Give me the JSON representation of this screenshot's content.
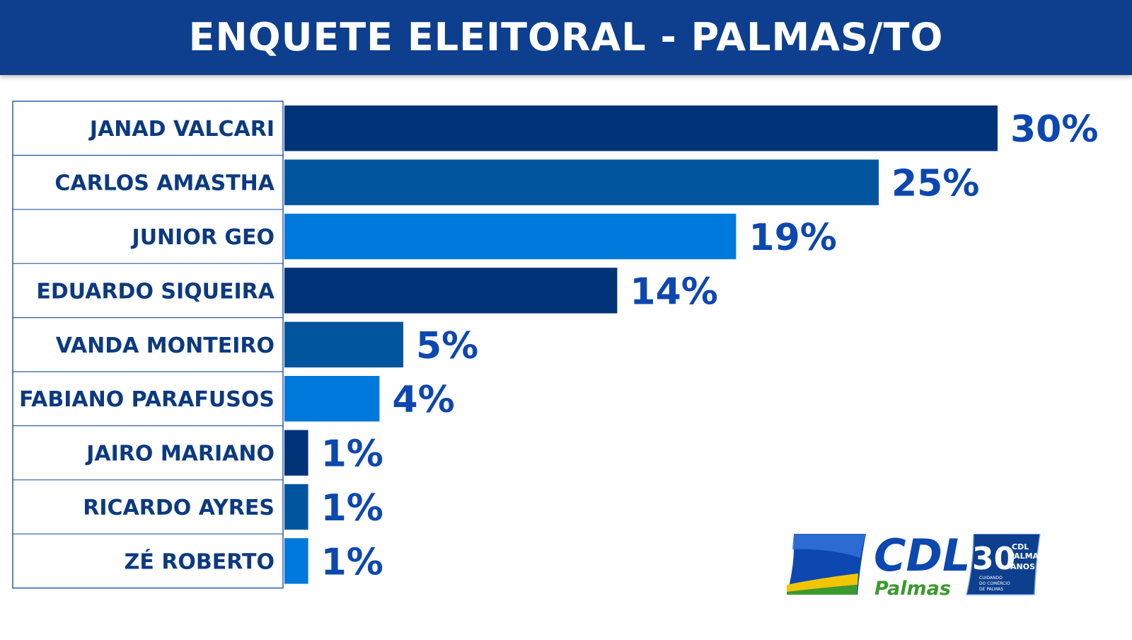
{
  "header": {
    "title": "ENQUETE ELEITORAL - PALMAS/TO"
  },
  "chart_data": {
    "type": "bar",
    "orientation": "horizontal",
    "title": "ENQUETE ELEITORAL - PALMAS/TO",
    "categories": [
      "JANAD VALCARI",
      "CARLOS AMASTHA",
      "JUNIOR GEO",
      "EDUARDO SIQUEIRA",
      "VANDA MONTEIRO",
      "FABIANO PARAFUSOS",
      "JAIRO MARIANO",
      "RICARDO AYRES",
      "ZÉ ROBERTO"
    ],
    "values": [
      30,
      25,
      19,
      14,
      5,
      4,
      1,
      1,
      1
    ],
    "value_labels": [
      "30%",
      "25%",
      "19%",
      "14%",
      "5%",
      "4%",
      "1%",
      "1%",
      "1%"
    ],
    "bar_colors": [
      "#003378",
      "#00559e",
      "#0079dd"
    ],
    "xlabel": "",
    "ylabel": "",
    "grid": false,
    "legend": "none"
  },
  "logo": {
    "brand": "CDL",
    "city": "Palmas",
    "badge_number": "30",
    "badge_line1": "CDL",
    "badge_line2": "PALMAS",
    "badge_line3": "ANOS",
    "badge_tagline1": "CUIDANDO",
    "badge_tagline2": "DO COMÉRCIO",
    "badge_tagline3": "DE PALMAS",
    "colors": {
      "blue": "#0d47b0",
      "green": "#3a9a2e",
      "yellow": "#f2c500"
    }
  }
}
